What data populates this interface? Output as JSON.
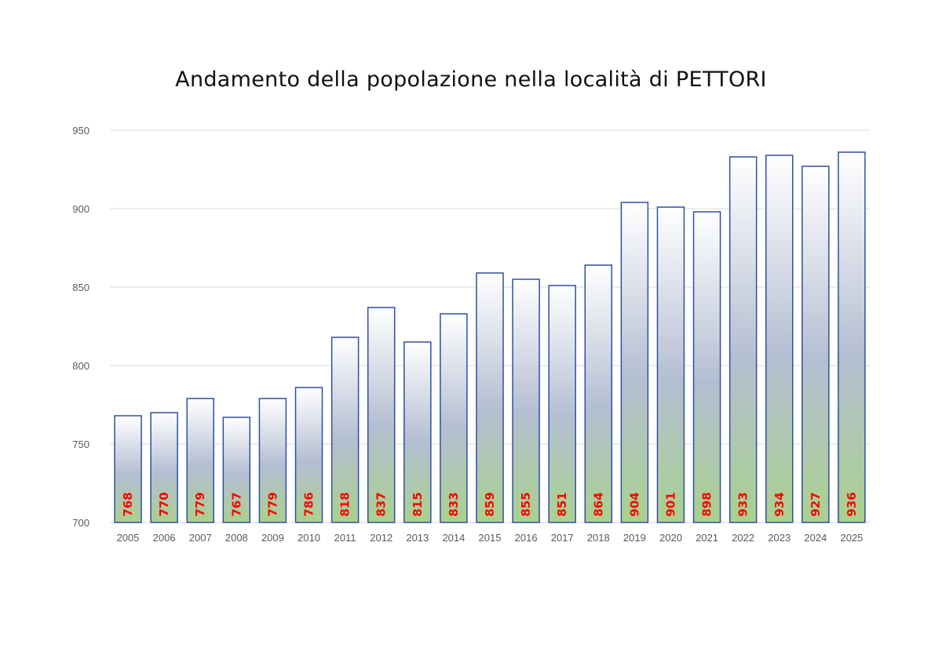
{
  "chart_data": {
    "type": "bar",
    "title": "Andamento della popolazione nella località di PETTORI",
    "xlabel": "",
    "ylabel": "",
    "categories": [
      "2005",
      "2006",
      "2007",
      "2008",
      "2009",
      "2010",
      "2011",
      "2012",
      "2013",
      "2014",
      "2015",
      "2016",
      "2017",
      "2018",
      "2019",
      "2020",
      "2021",
      "2022",
      "2023",
      "2024",
      "2025"
    ],
    "values": [
      768,
      770,
      779,
      767,
      779,
      786,
      818,
      837,
      815,
      833,
      859,
      855,
      851,
      864,
      904,
      901,
      898,
      933,
      934,
      927,
      936
    ],
    "ylim": [
      700,
      950
    ],
    "yticks": [
      700,
      750,
      800,
      850,
      900,
      950
    ],
    "grid": true,
    "legend": "none",
    "data_labels": true,
    "colors": {
      "bar_outline": "#2f4f9f",
      "bar_fill_top": "#ffffff",
      "bar_fill_middle": "#b4bed2",
      "bar_fill_bottom": "#a9d18e",
      "data_label": "#ff0000",
      "gridline": "#d9d9d9",
      "tick_label": "#595959"
    }
  }
}
